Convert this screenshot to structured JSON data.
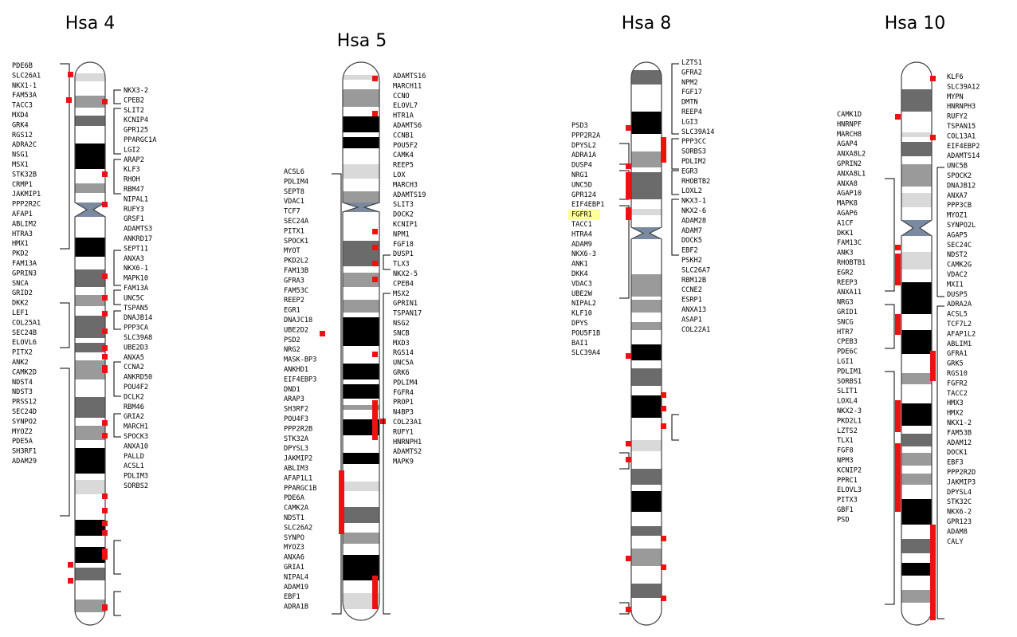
{
  "colors": {
    "marker": "#ee1111",
    "bracket": "#000000",
    "highlight": "#ffff99",
    "outline": "#444444",
    "centromere": "#7a8aa0",
    "band_black": "#000000",
    "band_dark": "#6b6b6b",
    "band_mid": "#9a9a9a",
    "band_light": "#d9d9d9",
    "band_white": "#ffffff"
  },
  "chromosomes": [
    {
      "id": "hsa4",
      "title": "Hsa 4",
      "left_labels": [
        "PDE6B",
        "SLC26A1",
        "NKX1-1",
        "FAM53A",
        "TACC3",
        "MXD4",
        "GRK4",
        "RGS12",
        "ADRA2C",
        "NSG1",
        "MSX1",
        "STK32B",
        "CRMP1",
        "JAKMIP1",
        "PPP2R2C",
        "AFAP1",
        "ABLIM2",
        "HTRA3",
        "HMX1",
        "PKD2",
        "FAM13A",
        "GPRIN3",
        "SNCA",
        "GRID2",
        "DKK2",
        "LEF1",
        "COL25A1",
        "SEC24B",
        "ELOVL6",
        "PITX2",
        "ANK2",
        "CAMK2D",
        "NDST4",
        "NDST3",
        "PRSS12",
        "SEC24D",
        "SYNPO2",
        "MYOZ2",
        "PDE5A",
        "SH3RF1",
        "ADAM29"
      ],
      "right_labels": [
        "NKX3-2",
        "CPEB2",
        "SLIT2",
        "KCNIP4",
        "GPR125",
        "PPARGC1A",
        "LGI2",
        "ARAP2",
        "KLF3",
        "RHOH",
        "RBM47",
        "NIPAL1",
        "RUFY3",
        "GRSF1",
        "ADAMTS3",
        "ANKRD17",
        "SEPT11",
        "ANXA3",
        "NKX6-1",
        "MAPK10",
        "FAM13A",
        "UNC5C",
        "TSPAN5",
        "DNAJB14",
        "PPP3CA",
        "SLC39A8",
        "UBE2D3",
        "ANXA5",
        "CCNA2",
        "ANKRD50",
        "POU4F2",
        "DCLK2",
        "RBM46",
        "GRIA2",
        "MARCH1",
        "SPOCK3",
        "ANXA10",
        "PALLD",
        "ACSL1",
        "PDLIM3",
        "SORBS2"
      ]
    },
    {
      "id": "hsa5",
      "title": "Hsa 5",
      "left_labels": [
        "ACSL6",
        "PDLIM4",
        "SEPT8",
        "VDAC1",
        "TCF7",
        "SEC24A",
        "PITX1",
        "SPOCK1",
        "MYOT",
        "PKD2L2",
        "FAM13B",
        "GFRA3",
        "FAM53C",
        "REEP2",
        "EGR1",
        "DNAJC18",
        "UBE2D2",
        "PSD2",
        "NRG2",
        "MASK-BP3",
        "ANKHD1",
        "EIF4EBP3",
        "DND1",
        "ARAP3",
        "SH3RF2",
        "POU4F3",
        "PPP2R2B",
        "STK32A",
        "DPYSL3",
        "JAKMIP2",
        "ABLIM3",
        "AFAP1L1",
        "PPARGC1B",
        "PDE6A",
        "CAMK2A",
        "NDST1",
        "SLC26A2",
        "SYNPO",
        "MYOZ3",
        "ANXA6",
        "GRIA1",
        "NIPAL4",
        "ADAM19",
        "EBF1",
        "ADRA1B"
      ],
      "right_labels": [
        "ADAMTS16",
        "MARCH11",
        "CCNO",
        "ELOVL7",
        "HTR1A",
        "ADAMTS6",
        "CCNB1",
        "POU5F2",
        "CAMK4",
        "REEP5",
        "LOX",
        "MARCH3",
        "ADAMTS19",
        "SLIT3",
        "DOCK2",
        "KCNIP1",
        "NPM1",
        "FGF18",
        "DUSP1",
        "TLX3",
        "NKX2-5",
        "CPEB4",
        "MSX2",
        "GPRIN1",
        "TSPAN17",
        "NSG2",
        "SNCB",
        "MXD3",
        "RGS14",
        "UNC5A",
        "GRK6",
        "PDLIM4",
        "FGFR4",
        "PROP1",
        "N4BP3",
        "COL23A1",
        "RUFY1",
        "HNRNPH1",
        "ADAMTS2",
        "MAPK9"
      ]
    },
    {
      "id": "hsa8",
      "title": "Hsa 8",
      "left_labels": [
        "PSD3",
        "PPP2R2A",
        "DPYSL2",
        "ADRA1A",
        "DUSP4",
        "NRG1",
        "UNC5D",
        "GPR124",
        "EIF4EBP1",
        "FGFR1",
        "TACC1",
        "HTRA4",
        "ADAM9",
        "NKX6-3",
        "ANK1",
        "DKK4",
        "VDAC3",
        "UBE2W",
        "NIPAL2",
        "KLF10",
        "DPYS",
        "POU5F1B",
        "BAI1",
        "SLC39A4"
      ],
      "highlighted_label": "FGFR1",
      "right_labels": [
        "LZTS1",
        "GFRA2",
        "NPM2",
        "FGF17",
        "DMTN",
        "REEP4",
        "LGI3",
        "SLC39A14",
        "PPP3CC",
        "SORBS3",
        "PDLIM2",
        "EGR3",
        "RHOBTB2",
        "LOXL2",
        "NKX3-1",
        "NKX2-6",
        "ADAM28",
        "ADAM7",
        "DOCK5",
        "EBF2",
        "PSKH2",
        "SLC26A7",
        "RBM12B",
        "CCNE2",
        "ESRP1",
        "ANXA13",
        "ASAP1",
        "COL22A1"
      ]
    },
    {
      "id": "hsa10",
      "title": "Hsa 10",
      "left_labels": [
        "CAMK1D",
        "HNRNPF",
        "MARCH8",
        "AGAP4",
        "ANXA8L2",
        "GPRIN2",
        "ANXA8L1",
        "ANXA8",
        "AGAP10",
        "MAPK8",
        "AGAP6",
        "A1CF",
        "DKK1",
        "FAM13C",
        "ANK3",
        "RHOBTB1",
        "EGR2",
        "REEP3",
        "ANXA11",
        "NRG3",
        "GRID1",
        "SNCG",
        "HTR7",
        "CPEB3",
        "PDE6C",
        "LGI1",
        "PDLIM1",
        "SORBS1",
        "SLIT1",
        "LOXL4",
        "NKX2-3",
        "PKD2L1",
        "LZTS2",
        "TLX1",
        "FGF8",
        "NPM3",
        "KCNIP2",
        "PPRC1",
        "ELOVL3",
        "PITX3",
        "GBF1",
        "PSD"
      ],
      "right_labels": [
        "KLF6",
        "SLC39A12",
        "MYPN",
        "HNRNPH3",
        "RUFY2",
        "TSPAN15",
        "COL13A1",
        "EIF4EBP2",
        "ADAMTS14",
        "UNC5B",
        "SPOCK2",
        "DNAJB12",
        "ANXA7",
        "PPP3CB",
        "MYOZ1",
        "SYNPO2L",
        "AGAP5",
        "SEC24C",
        "NDST2",
        "CAMK2G",
        "VDAC2",
        "MXI1",
        "DUSP5",
        "ADRA2A",
        "ACSL5",
        "TCF7L2",
        "AFAP1L2",
        "ABLIM1",
        "GFRA1",
        "GRK5",
        "RGS10",
        "FGFR2",
        "TACC2",
        "HMX3",
        "HMX2",
        "NKX1-2",
        "FAM53B",
        "ADAM12",
        "DOCK1",
        "EBF3",
        "PPP2R2D",
        "JAKMIP3",
        "DPYSL4",
        "STK32C",
        "NKX6-2",
        "GPR123",
        "ADAM8",
        "CALY"
      ]
    }
  ]
}
